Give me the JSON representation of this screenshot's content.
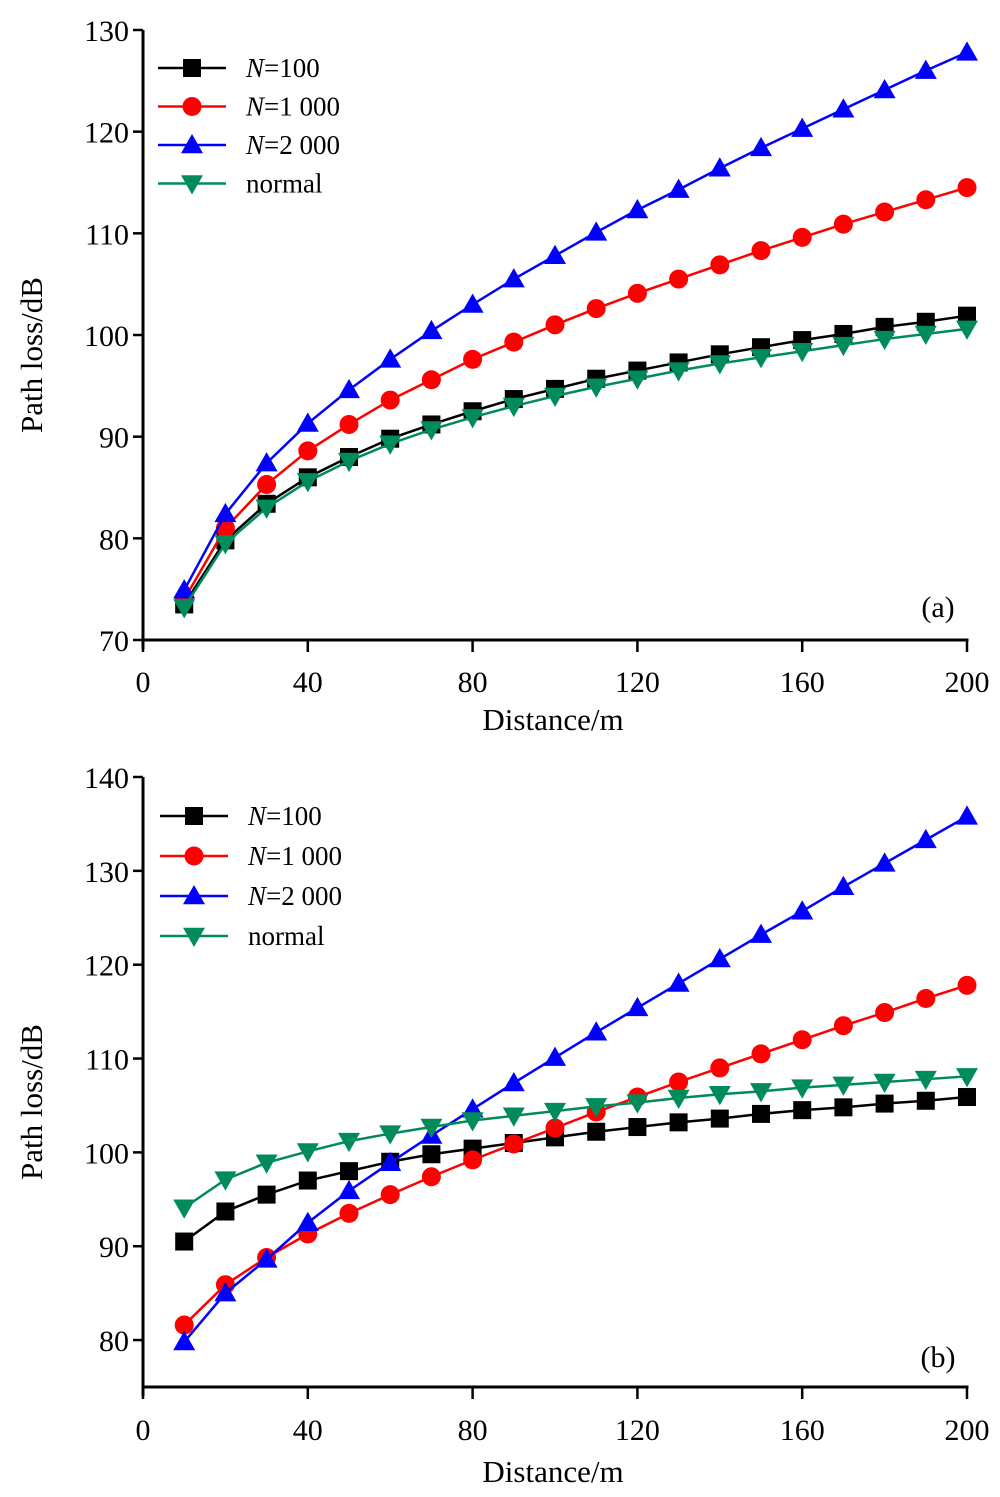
{
  "chart_data": [
    {
      "type": "line",
      "panel_label": "(a)",
      "xlabel": "Distance/m",
      "ylabel": "Path loss/dB",
      "xlim": [
        0,
        200
      ],
      "ylim": [
        70,
        130
      ],
      "xticks": [
        0,
        40,
        80,
        120,
        160,
        200
      ],
      "yticks": [
        70,
        80,
        90,
        100,
        110,
        120,
        130
      ],
      "grid": false,
      "legend_position": "top-left",
      "x": [
        10,
        20,
        30,
        40,
        50,
        60,
        70,
        80,
        90,
        100,
        110,
        120,
        130,
        140,
        150,
        160,
        170,
        180,
        190,
        200
      ],
      "series": [
        {
          "name": "N=100",
          "name_italic": "N",
          "name_rest": "=100",
          "color": "#000000",
          "marker": "square",
          "values": [
            73.5,
            79.8,
            83.4,
            86.0,
            88.0,
            89.8,
            91.2,
            92.5,
            93.7,
            94.7,
            95.7,
            96.5,
            97.3,
            98.1,
            98.8,
            99.5,
            100.1,
            100.8,
            101.3,
            101.9
          ]
        },
        {
          "name": "N=1 000",
          "name_italic": "N",
          "name_rest": "=1 000",
          "color": "#ff0000",
          "marker": "circle",
          "values": [
            74.0,
            81.0,
            85.3,
            88.6,
            91.2,
            93.6,
            95.6,
            97.6,
            99.3,
            101.0,
            102.6,
            104.1,
            105.5,
            106.9,
            108.3,
            109.6,
            110.9,
            112.1,
            113.3,
            114.5
          ]
        },
        {
          "name": "N=2 000",
          "name_italic": "N",
          "name_rest": "=2 000",
          "color": "#0000ff",
          "marker": "triangle-up",
          "values": [
            74.9,
            82.4,
            87.4,
            91.3,
            94.6,
            97.6,
            100.4,
            103.0,
            105.5,
            107.8,
            110.1,
            112.3,
            114.3,
            116.4,
            118.4,
            120.3,
            122.2,
            124.1,
            126.0,
            127.8
          ]
        },
        {
          "name": "normal",
          "name_italic": "",
          "name_rest": "normal",
          "color": "#008c5a",
          "marker": "triangle-down",
          "values": [
            73.2,
            79.5,
            83.0,
            85.6,
            87.6,
            89.3,
            90.7,
            91.9,
            93.0,
            94.0,
            94.9,
            95.7,
            96.5,
            97.2,
            97.8,
            98.4,
            99.0,
            99.6,
            100.1,
            100.6
          ]
        }
      ]
    },
    {
      "type": "line",
      "panel_label": "(b)",
      "xlabel": "Distance/m",
      "ylabel": "Path loss/dB",
      "xlim": [
        0,
        200
      ],
      "ylim": [
        75,
        140
      ],
      "xticks": [
        0,
        40,
        80,
        120,
        160,
        200
      ],
      "yticks": [
        80,
        90,
        100,
        110,
        120,
        130,
        140
      ],
      "grid": false,
      "legend_position": "top-left",
      "x": [
        10,
        20,
        30,
        40,
        50,
        60,
        70,
        80,
        90,
        100,
        110,
        120,
        130,
        140,
        150,
        160,
        170,
        180,
        190,
        200
      ],
      "series": [
        {
          "name": "N=100",
          "name_italic": "N",
          "name_rest": "=100",
          "color": "#000000",
          "marker": "square",
          "values": [
            90.5,
            93.7,
            95.5,
            97.0,
            98.0,
            99.0,
            99.8,
            100.4,
            101.0,
            101.6,
            102.2,
            102.7,
            103.2,
            103.6,
            104.1,
            104.5,
            104.8,
            105.2,
            105.5,
            105.9
          ]
        },
        {
          "name": "N=1 000",
          "name_italic": "N",
          "name_rest": "=1 000",
          "color": "#ff0000",
          "marker": "circle",
          "values": [
            81.6,
            85.9,
            88.8,
            91.3,
            93.5,
            95.5,
            97.4,
            99.2,
            100.9,
            102.6,
            104.3,
            105.9,
            107.5,
            109.0,
            110.5,
            112.0,
            113.5,
            114.9,
            116.4,
            117.8
          ]
        },
        {
          "name": "N=2 000",
          "name_italic": "N",
          "name_rest": "=2 000",
          "color": "#0000ff",
          "marker": "triangle-up",
          "values": [
            79.8,
            85.0,
            88.6,
            92.5,
            95.9,
            98.9,
            101.8,
            104.6,
            107.4,
            110.1,
            112.8,
            115.4,
            118.0,
            120.6,
            123.2,
            125.7,
            128.3,
            130.8,
            133.3,
            135.8
          ]
        },
        {
          "name": "normal",
          "name_italic": "",
          "name_rest": "normal",
          "color": "#008c5a",
          "marker": "triangle-down",
          "values": [
            94.1,
            97.1,
            98.9,
            100.1,
            101.2,
            102.0,
            102.7,
            103.4,
            103.9,
            104.4,
            104.9,
            105.3,
            105.8,
            106.2,
            106.5,
            106.9,
            107.2,
            107.5,
            107.8,
            108.1
          ]
        }
      ]
    }
  ]
}
